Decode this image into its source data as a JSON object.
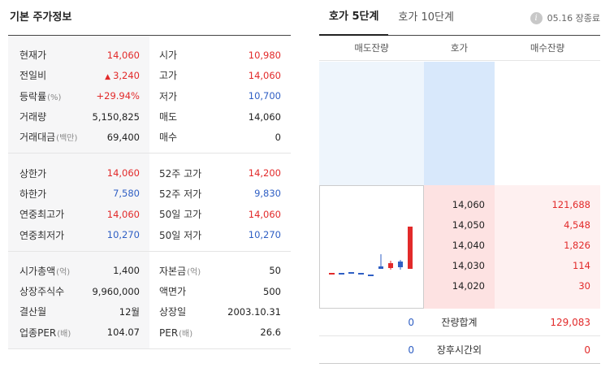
{
  "basic": {
    "title": "기본 주가정보",
    "section1_left": [
      {
        "label": "현재가",
        "sub": "",
        "value": "14,060",
        "color": "red"
      },
      {
        "label": "전일비",
        "sub": "",
        "value": "3,240",
        "color": "red",
        "arrow": "▲"
      },
      {
        "label": "등락률",
        "sub": "(%)",
        "value": "+29.94%",
        "color": "red"
      },
      {
        "label": "거래량",
        "sub": "",
        "value": "5,150,825",
        "color": ""
      },
      {
        "label": "거래대금",
        "sub": "(백만)",
        "value": "69,400",
        "color": ""
      }
    ],
    "section1_right": [
      {
        "label": "시가",
        "value": "10,980",
        "color": "red"
      },
      {
        "label": "고가",
        "value": "14,060",
        "color": "red"
      },
      {
        "label": "저가",
        "value": "10,700",
        "color": "blue"
      },
      {
        "label": "매도",
        "value": "14,060",
        "color": ""
      },
      {
        "label": "매수",
        "value": "0",
        "color": ""
      }
    ],
    "section2_left": [
      {
        "label": "상한가",
        "value": "14,060",
        "color": "red"
      },
      {
        "label": "하한가",
        "value": "7,580",
        "color": "blue"
      },
      {
        "label": "연중최고가",
        "value": "14,060",
        "color": "red"
      },
      {
        "label": "연중최저가",
        "value": "10,270",
        "color": "blue"
      }
    ],
    "section2_right": [
      {
        "label": "52주 고가",
        "value": "14,200",
        "color": "red"
      },
      {
        "label": "52주 저가",
        "value": "9,830",
        "color": "blue"
      },
      {
        "label": "50일 고가",
        "value": "14,060",
        "color": "red"
      },
      {
        "label": "50일 저가",
        "value": "10,270",
        "color": "blue"
      }
    ],
    "section3_left": [
      {
        "label": "시가총액",
        "sub": "(억)",
        "value": "1,400"
      },
      {
        "label": "상장주식수",
        "sub": "",
        "value": "9,960,000"
      },
      {
        "label": "결산월",
        "sub": "",
        "value": "12월"
      },
      {
        "label": "업종PER",
        "sub": "(배)",
        "value": "104.07"
      }
    ],
    "section3_right": [
      {
        "label": "자본금",
        "sub": "(억)",
        "value": "50"
      },
      {
        "label": "액면가",
        "sub": "",
        "value": "500"
      },
      {
        "label": "상장일",
        "sub": "",
        "value": "2003.10.31"
      },
      {
        "label": "PER",
        "sub": "(배)",
        "value": "26.6"
      }
    ]
  },
  "orderbook": {
    "tabs": [
      "호가 5단계",
      "호가 10단계"
    ],
    "active_tab": 0,
    "status_icon": "info-icon",
    "status_icon_glyph": "i",
    "status_text": "05.16 장종료",
    "headers": [
      "매도잔량",
      "호가",
      "매수잔량"
    ],
    "bids": [
      {
        "price": "14,060",
        "qty": "121,688"
      },
      {
        "price": "14,050",
        "qty": "4,548"
      },
      {
        "price": "14,040",
        "qty": "1,826"
      },
      {
        "price": "14,030",
        "qty": "114"
      },
      {
        "price": "14,020",
        "qty": "30"
      }
    ],
    "summary": [
      {
        "ask": "0",
        "label": "잔량합계",
        "bid": "129,083"
      },
      {
        "ask": "0",
        "label": "장후시간외",
        "bid": "0"
      }
    ]
  },
  "colors": {
    "up": "#e22a2a",
    "down": "#2f5fc4",
    "ask_bg": "#d8e8fb",
    "bid_bg": "#fde2e2"
  }
}
